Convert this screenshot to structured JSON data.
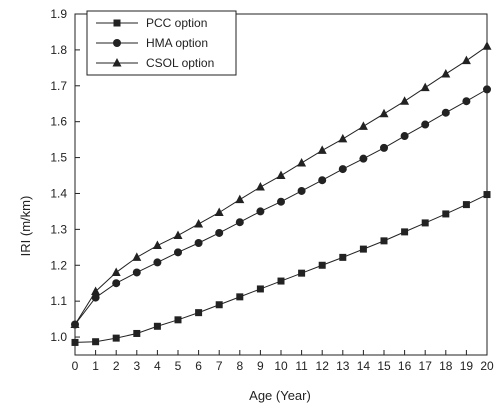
{
  "chart_data": {
    "type": "line",
    "xlabel": "Age (Year)",
    "ylabel": "IRI (m/km)",
    "xlim": [
      0,
      20
    ],
    "ylim": [
      0.95,
      1.9
    ],
    "x_ticks": [
      "0",
      "1",
      "2",
      "3",
      "4",
      "5",
      "6",
      "7",
      "8",
      "9",
      "10",
      "11",
      "12",
      "13",
      "14",
      "15",
      "16",
      "17",
      "18",
      "19",
      "20"
    ],
    "y_ticks": [
      "1.0",
      "1.1",
      "1.2",
      "1.3",
      "1.4",
      "1.5",
      "1.6",
      "1.7",
      "1.8",
      "1.9"
    ],
    "grid": false,
    "legend_position": "top-left",
    "x": [
      0,
      1,
      2,
      3,
      4,
      5,
      6,
      7,
      8,
      9,
      10,
      11,
      12,
      13,
      14,
      15,
      16,
      17,
      18,
      19,
      20
    ],
    "series": [
      {
        "name": "PCC option",
        "marker": "square",
        "values": [
          0.985,
          0.987,
          0.997,
          1.01,
          1.03,
          1.048,
          1.068,
          1.09,
          1.112,
          1.134,
          1.156,
          1.178,
          1.2,
          1.222,
          1.245,
          1.268,
          1.293,
          1.318,
          1.343,
          1.369,
          1.397
        ]
      },
      {
        "name": "HMA option",
        "marker": "circle",
        "values": [
          1.035,
          1.11,
          1.15,
          1.18,
          1.208,
          1.236,
          1.262,
          1.29,
          1.32,
          1.35,
          1.377,
          1.407,
          1.437,
          1.468,
          1.497,
          1.527,
          1.56,
          1.592,
          1.625,
          1.657,
          1.69
        ]
      },
      {
        "name": "CSOL option",
        "marker": "triangle",
        "values": [
          1.035,
          1.127,
          1.18,
          1.222,
          1.255,
          1.283,
          1.315,
          1.347,
          1.383,
          1.418,
          1.45,
          1.485,
          1.52,
          1.552,
          1.587,
          1.622,
          1.657,
          1.695,
          1.733,
          1.77,
          1.81
        ]
      }
    ]
  }
}
